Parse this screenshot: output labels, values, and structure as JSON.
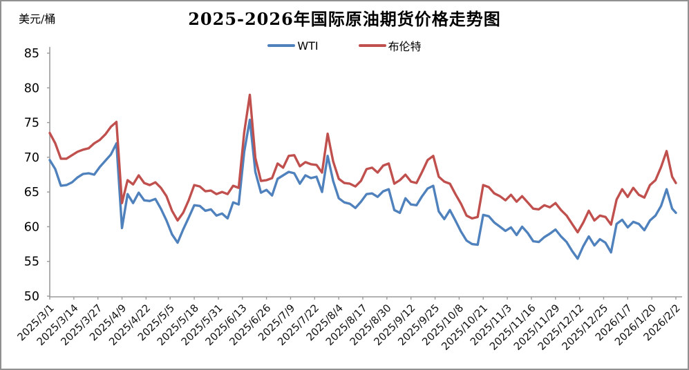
{
  "header": {
    "unit_label": "美元/桶"
  },
  "chart_data": {
    "type": "line",
    "title": "2025-2026年国际原油期货价格走势图",
    "ylabel": "美元/桶",
    "xlabel": "",
    "ylim": [
      50,
      85
    ],
    "yticks": [
      50,
      55,
      60,
      65,
      70,
      75,
      80,
      85
    ],
    "grid": false,
    "legend_position": "top-center",
    "axis_color": "#9a9a9a",
    "xtick_labels": [
      "2025/3/1",
      "2025/3/14",
      "2025/3/27",
      "2025/4/9",
      "2025/4/22",
      "2025/5/5",
      "2025/5/18",
      "2025/5/31",
      "2025/6/13",
      "2025/6/26",
      "2025/7/9",
      "2025/7/22",
      "2025/8/4",
      "2025/8/17",
      "2025/8/30",
      "2025/9/12",
      "2025/9/25",
      "2025/10/8",
      "2025/10/21",
      "2025/11/3",
      "2025/11/16",
      "2025/11/29",
      "2025/12/12",
      "2025/12/25",
      "2026/1/7",
      "2026/1/20",
      "2026/2/2"
    ],
    "x_day_span": 338,
    "xtick_day_step": 13,
    "series": [
      {
        "name": "WTI",
        "color": "#4F81BD",
        "points": [
          [
            0,
            69.6
          ],
          [
            3,
            68.3
          ],
          [
            6,
            65.9
          ],
          [
            9,
            66.0
          ],
          [
            12,
            66.4
          ],
          [
            15,
            67.1
          ],
          [
            18,
            67.6
          ],
          [
            21,
            67.7
          ],
          [
            24,
            67.5
          ],
          [
            27,
            68.6
          ],
          [
            30,
            69.5
          ],
          [
            33,
            70.4
          ],
          [
            36,
            72.0
          ],
          [
            39,
            59.8
          ],
          [
            42,
            64.7
          ],
          [
            45,
            63.4
          ],
          [
            48,
            64.9
          ],
          [
            51,
            63.8
          ],
          [
            54,
            63.7
          ],
          [
            57,
            64.0
          ],
          [
            60,
            62.6
          ],
          [
            63,
            60.9
          ],
          [
            66,
            58.9
          ],
          [
            69,
            57.7
          ],
          [
            72,
            59.6
          ],
          [
            75,
            61.3
          ],
          [
            78,
            63.1
          ],
          [
            81,
            63.0
          ],
          [
            84,
            62.3
          ],
          [
            87,
            62.5
          ],
          [
            90,
            61.6
          ],
          [
            93,
            61.9
          ],
          [
            96,
            61.2
          ],
          [
            99,
            63.5
          ],
          [
            102,
            63.2
          ],
          [
            105,
            70.8
          ],
          [
            108,
            75.4
          ],
          [
            111,
            67.9
          ],
          [
            114,
            64.9
          ],
          [
            117,
            65.3
          ],
          [
            120,
            64.5
          ],
          [
            123,
            66.9
          ],
          [
            126,
            67.4
          ],
          [
            129,
            67.9
          ],
          [
            132,
            67.7
          ],
          [
            135,
            66.2
          ],
          [
            138,
            67.4
          ],
          [
            141,
            67.0
          ],
          [
            144,
            67.2
          ],
          [
            147,
            65.0
          ],
          [
            150,
            70.2
          ],
          [
            153,
            66.6
          ],
          [
            156,
            64.1
          ],
          [
            159,
            63.5
          ],
          [
            162,
            63.3
          ],
          [
            165,
            62.7
          ],
          [
            168,
            63.6
          ],
          [
            171,
            64.7
          ],
          [
            174,
            64.8
          ],
          [
            177,
            64.3
          ],
          [
            180,
            65.1
          ],
          [
            183,
            65.4
          ],
          [
            186,
            62.4
          ],
          [
            189,
            62.0
          ],
          [
            192,
            64.1
          ],
          [
            195,
            63.2
          ],
          [
            198,
            63.1
          ],
          [
            201,
            64.4
          ],
          [
            204,
            65.5
          ],
          [
            207,
            65.9
          ],
          [
            210,
            62.2
          ],
          [
            213,
            61.1
          ],
          [
            216,
            62.4
          ],
          [
            219,
            60.9
          ],
          [
            222,
            59.3
          ],
          [
            225,
            58.0
          ],
          [
            228,
            57.5
          ],
          [
            231,
            57.4
          ],
          [
            234,
            61.7
          ],
          [
            237,
            61.5
          ],
          [
            240,
            60.6
          ],
          [
            243,
            60.0
          ],
          [
            246,
            59.4
          ],
          [
            249,
            59.9
          ],
          [
            252,
            58.8
          ],
          [
            255,
            60.0
          ],
          [
            258,
            59.1
          ],
          [
            261,
            57.9
          ],
          [
            264,
            57.8
          ],
          [
            267,
            58.5
          ],
          [
            270,
            59.0
          ],
          [
            273,
            59.6
          ],
          [
            276,
            58.6
          ],
          [
            279,
            57.8
          ],
          [
            282,
            56.5
          ],
          [
            285,
            55.4
          ],
          [
            288,
            57.2
          ],
          [
            291,
            58.6
          ],
          [
            294,
            57.3
          ],
          [
            297,
            58.2
          ],
          [
            300,
            57.7
          ],
          [
            303,
            56.3
          ],
          [
            306,
            60.4
          ],
          [
            309,
            61.0
          ],
          [
            312,
            59.9
          ],
          [
            315,
            60.7
          ],
          [
            318,
            60.4
          ],
          [
            321,
            59.5
          ],
          [
            324,
            60.9
          ],
          [
            327,
            61.6
          ],
          [
            330,
            63.0
          ],
          [
            333,
            65.4
          ],
          [
            336,
            62.6
          ],
          [
            338,
            62.0
          ]
        ]
      },
      {
        "name": "布伦特",
        "color": "#C0504D",
        "points": [
          [
            0,
            73.5
          ],
          [
            3,
            72.0
          ],
          [
            6,
            69.8
          ],
          [
            9,
            69.8
          ],
          [
            12,
            70.3
          ],
          [
            15,
            70.8
          ],
          [
            18,
            71.1
          ],
          [
            21,
            71.3
          ],
          [
            24,
            72.0
          ],
          [
            27,
            72.5
          ],
          [
            30,
            73.3
          ],
          [
            33,
            74.4
          ],
          [
            36,
            75.1
          ],
          [
            39,
            63.4
          ],
          [
            42,
            66.7
          ],
          [
            45,
            66.1
          ],
          [
            48,
            67.4
          ],
          [
            51,
            66.3
          ],
          [
            54,
            66.0
          ],
          [
            57,
            66.4
          ],
          [
            60,
            65.6
          ],
          [
            63,
            64.4
          ],
          [
            66,
            62.3
          ],
          [
            69,
            60.9
          ],
          [
            72,
            62.0
          ],
          [
            75,
            63.8
          ],
          [
            78,
            66.0
          ],
          [
            81,
            65.8
          ],
          [
            84,
            65.1
          ],
          [
            87,
            65.2
          ],
          [
            90,
            64.7
          ],
          [
            93,
            65.0
          ],
          [
            96,
            64.7
          ],
          [
            99,
            65.9
          ],
          [
            102,
            65.6
          ],
          [
            105,
            73.6
          ],
          [
            108,
            79.0
          ],
          [
            111,
            69.9
          ],
          [
            114,
            66.6
          ],
          [
            117,
            66.7
          ],
          [
            120,
            67.0
          ],
          [
            123,
            69.1
          ],
          [
            126,
            68.5
          ],
          [
            129,
            70.2
          ],
          [
            132,
            70.3
          ],
          [
            135,
            68.7
          ],
          [
            138,
            69.3
          ],
          [
            141,
            69.0
          ],
          [
            144,
            68.9
          ],
          [
            147,
            67.8
          ],
          [
            150,
            73.4
          ],
          [
            153,
            69.4
          ],
          [
            156,
            66.9
          ],
          [
            159,
            66.3
          ],
          [
            162,
            66.2
          ],
          [
            165,
            65.8
          ],
          [
            168,
            66.6
          ],
          [
            171,
            68.3
          ],
          [
            174,
            68.5
          ],
          [
            177,
            67.8
          ],
          [
            180,
            68.8
          ],
          [
            183,
            69.1
          ],
          [
            186,
            66.2
          ],
          [
            189,
            66.7
          ],
          [
            192,
            67.5
          ],
          [
            195,
            66.5
          ],
          [
            198,
            66.3
          ],
          [
            201,
            67.9
          ],
          [
            204,
            69.6
          ],
          [
            207,
            70.2
          ],
          [
            210,
            67.2
          ],
          [
            213,
            66.5
          ],
          [
            216,
            66.2
          ],
          [
            219,
            64.7
          ],
          [
            222,
            63.3
          ],
          [
            225,
            61.6
          ],
          [
            228,
            61.2
          ],
          [
            231,
            61.4
          ],
          [
            234,
            66.0
          ],
          [
            237,
            65.7
          ],
          [
            240,
            64.8
          ],
          [
            243,
            64.4
          ],
          [
            246,
            63.8
          ],
          [
            249,
            64.6
          ],
          [
            252,
            63.6
          ],
          [
            255,
            64.4
          ],
          [
            258,
            63.5
          ],
          [
            261,
            62.6
          ],
          [
            264,
            62.5
          ],
          [
            267,
            63.1
          ],
          [
            270,
            62.8
          ],
          [
            273,
            63.4
          ],
          [
            276,
            62.4
          ],
          [
            279,
            61.6
          ],
          [
            282,
            60.4
          ],
          [
            285,
            59.2
          ],
          [
            288,
            60.6
          ],
          [
            291,
            62.3
          ],
          [
            294,
            60.9
          ],
          [
            297,
            61.6
          ],
          [
            300,
            61.4
          ],
          [
            303,
            60.3
          ],
          [
            306,
            63.9
          ],
          [
            309,
            65.4
          ],
          [
            312,
            64.3
          ],
          [
            315,
            65.6
          ],
          [
            318,
            64.6
          ],
          [
            321,
            64.2
          ],
          [
            324,
            66.0
          ],
          [
            327,
            66.7
          ],
          [
            330,
            68.6
          ],
          [
            333,
            70.9
          ],
          [
            336,
            67.2
          ],
          [
            338,
            66.3
          ]
        ]
      }
    ]
  }
}
